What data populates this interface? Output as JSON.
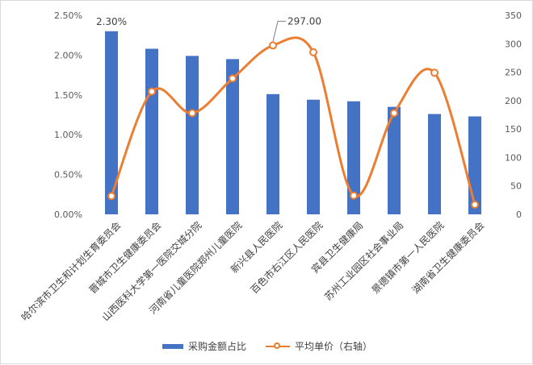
{
  "chart_data": {
    "type": "bar",
    "title": "",
    "categories": [
      "哈尔滨市卫生和计划生育委员会",
      "晋城市卫生健康委员会",
      "山西医科大学第一医院交城分院",
      "河南省儿童医院郑州儿童医院",
      "新兴县人民医院",
      "百色市右江区人民医院",
      "宾县卫生健康局",
      "苏州工业园区社会事业局",
      "景德镇市第一人民医院",
      "湖南省卫生健康委员会"
    ],
    "series": [
      {
        "name": "采购金额占比",
        "type": "bar",
        "axis": "left",
        "color": "#4472C4",
        "values": [
          2.3,
          2.08,
          1.99,
          1.95,
          1.51,
          1.44,
          1.42,
          1.35,
          1.26,
          1.23
        ]
      },
      {
        "name": "平均单价（右轴）",
        "type": "line",
        "axis": "right",
        "color": "#ED7D31",
        "smooth": true,
        "values": [
          32,
          216,
          178,
          239,
          297,
          285,
          33,
          178,
          249,
          17
        ]
      }
    ],
    "y_left": {
      "min": 0,
      "max": 2.5,
      "ticks": [
        "0.00%",
        "0.50%",
        "1.00%",
        "1.50%",
        "2.00%",
        "2.50%"
      ]
    },
    "y_right": {
      "min": 0,
      "max": 350,
      "ticks": [
        "0",
        "50",
        "100",
        "150",
        "200",
        "250",
        "300",
        "350"
      ]
    },
    "annotations": [
      {
        "series": 0,
        "index": 0,
        "text": "2.30%"
      },
      {
        "series": 1,
        "index": 4,
        "text": "297.00"
      }
    ],
    "legend": {
      "position": "bottom",
      "items": [
        "采购金额占比",
        "平均单价（右轴）"
      ]
    },
    "grid": false
  }
}
